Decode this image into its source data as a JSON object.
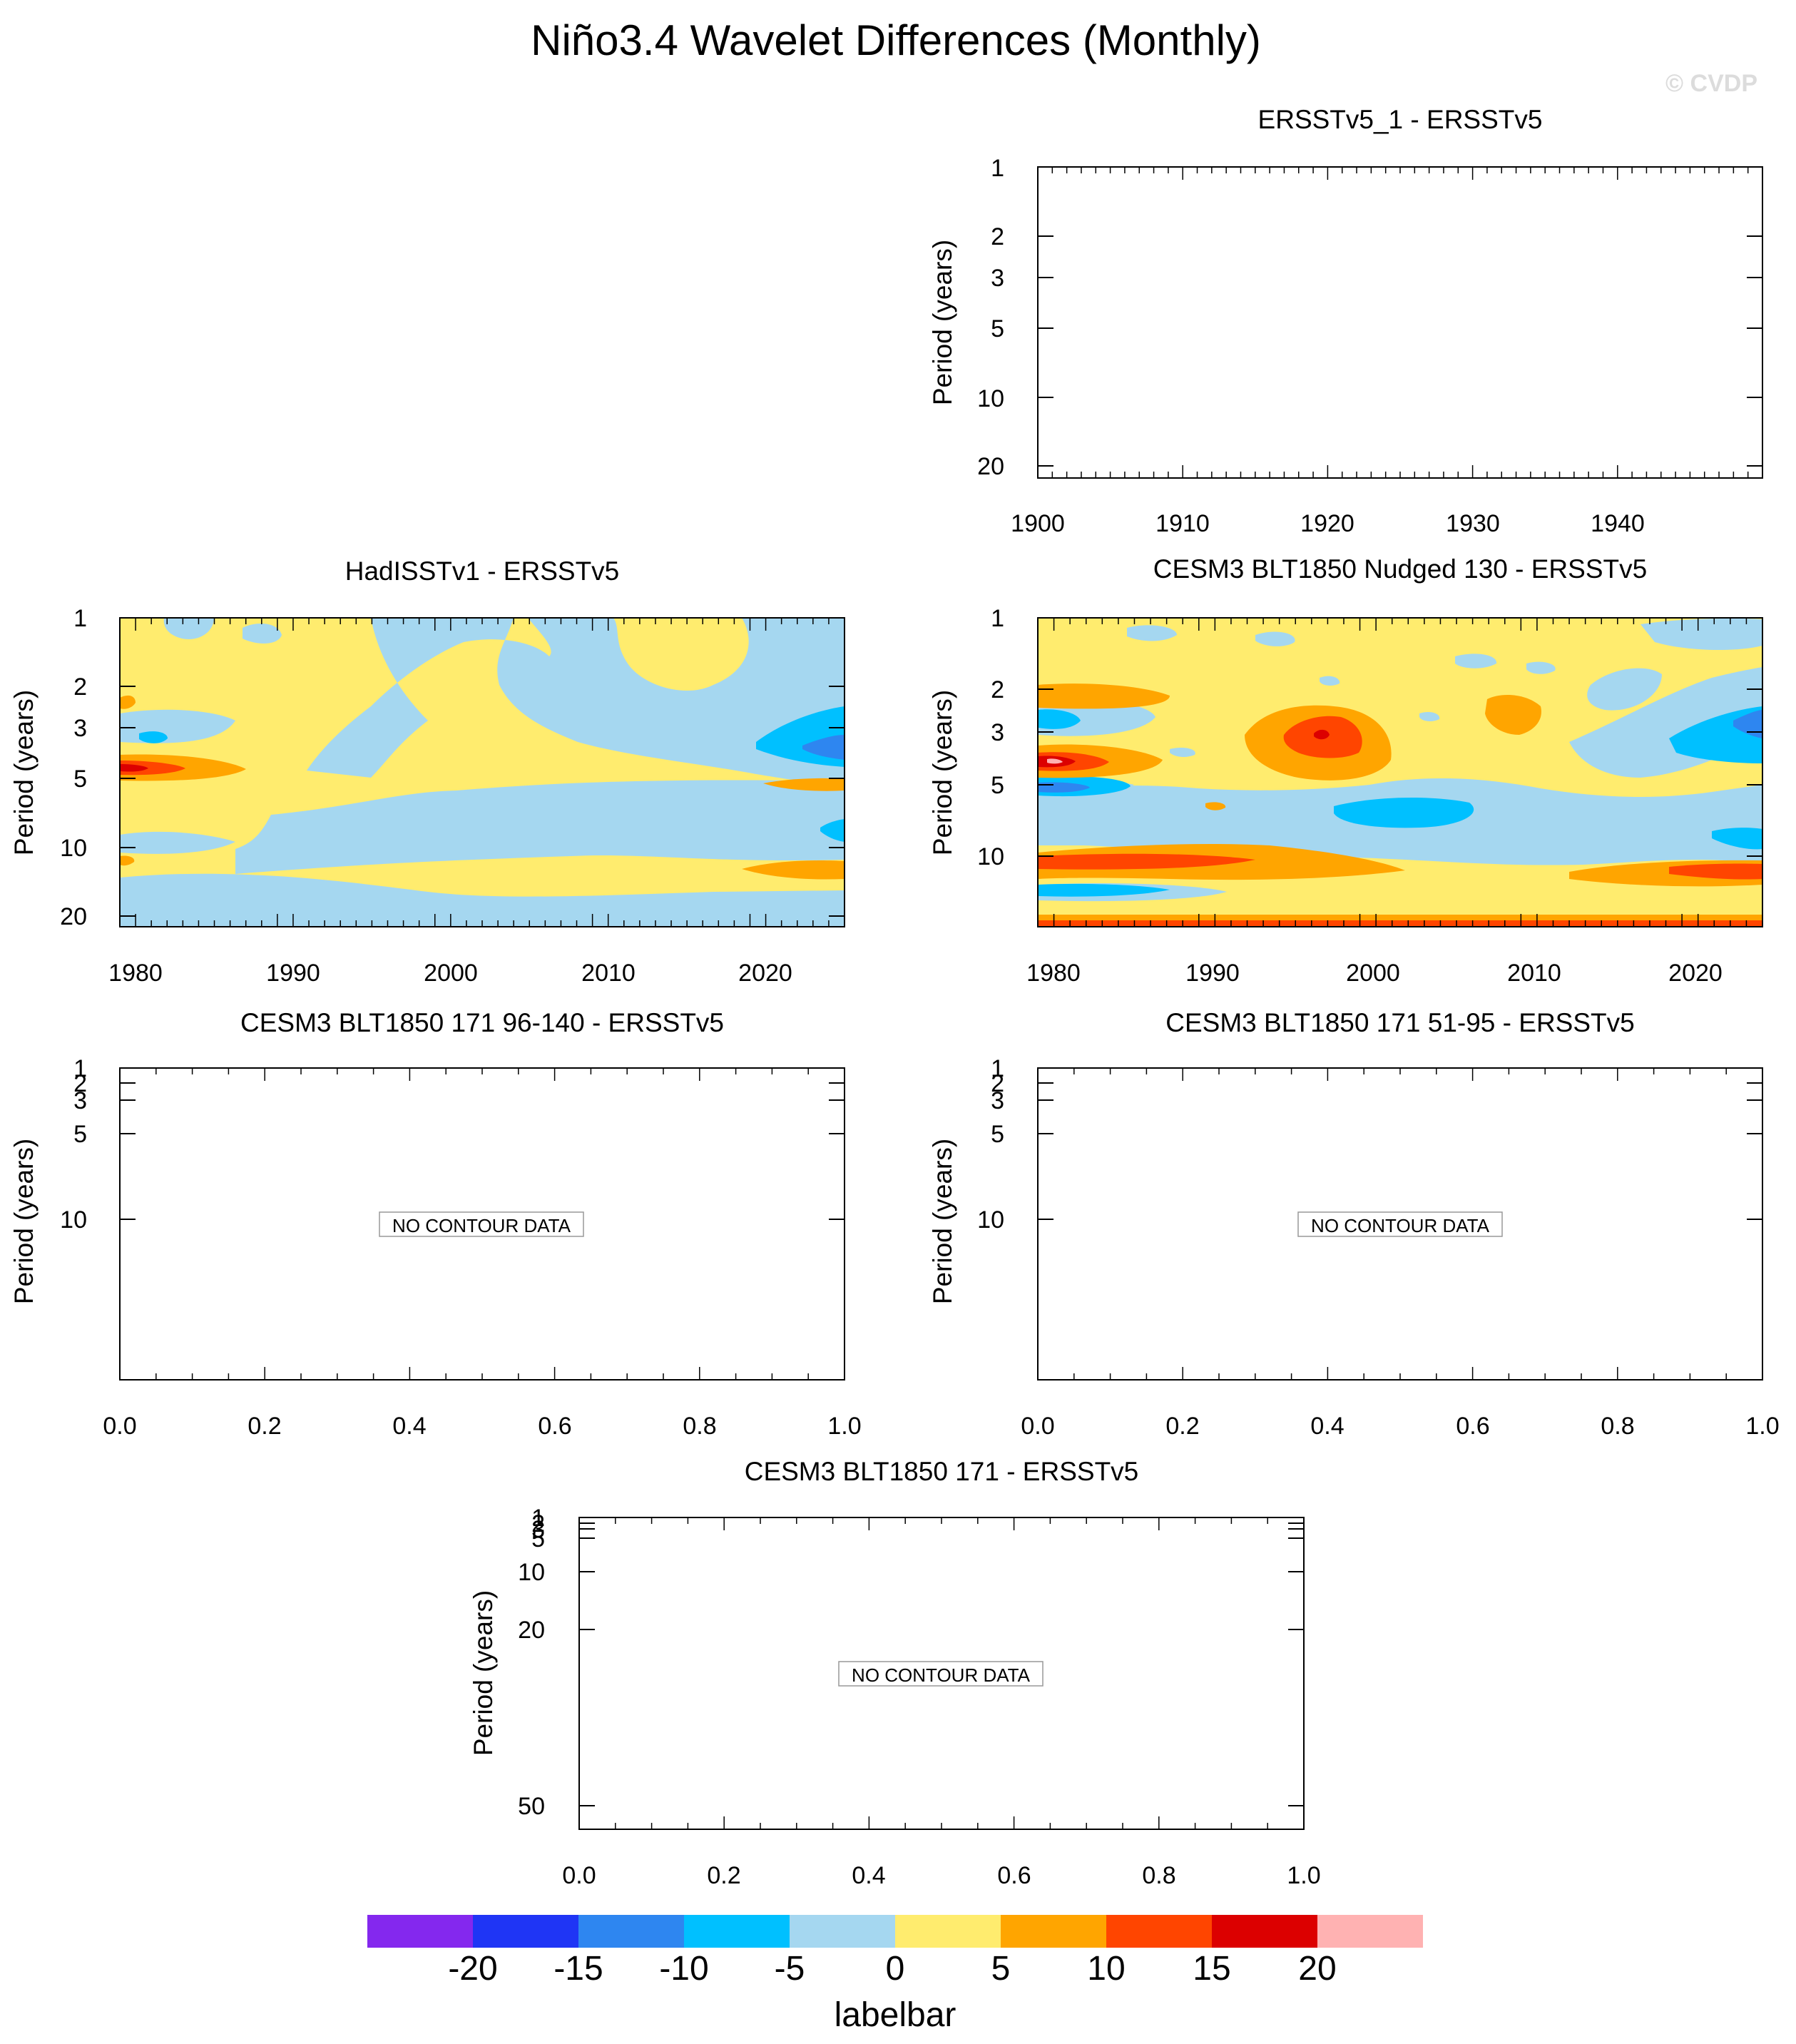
{
  "figure": {
    "title": "Niño3.4 Wavelet Differences (Monthly)",
    "watermark": "© CVDP"
  },
  "chart_data": [
    {
      "id": "p1",
      "type": "heatmap",
      "title": "ERSSTv5_1 - ERSSTv5",
      "ylabel": "Period (years)",
      "xlim": [
        1900,
        1950
      ],
      "xticks": [
        "1900",
        "1910",
        "1920",
        "1930",
        "1940"
      ],
      "yticks": [
        "1",
        "2",
        "3",
        "5",
        "10",
        "20"
      ],
      "no_data_text": "",
      "regions": []
    },
    {
      "id": "p2",
      "type": "heatmap",
      "title": "HadISSTv1 - ERSSTv5",
      "ylabel": "Period (years)",
      "xlim": [
        1979,
        2025
      ],
      "xticks": [
        "1980",
        "1990",
        "2000",
        "2010",
        "2020"
      ],
      "yticks": [
        "1",
        "2",
        "3",
        "5",
        "10",
        "20"
      ],
      "background_level": "0 to 5",
      "regions": [
        {
          "level": "-5 to 0",
          "x": [
            1979,
            2025
          ],
          "period": [
            1.0,
            20.0
          ],
          "note": "broad negative band around 6-20 yr and 1-3 yr at 1990-2015"
        },
        {
          "level": "5 to 10",
          "x": [
            1979,
            1985
          ],
          "period": [
            4.0,
            5.0
          ]
        },
        {
          "level": "10 to 15",
          "x": [
            1979,
            1983
          ],
          "period": [
            4.2,
            4.7
          ]
        },
        {
          "level": "-10 to -5",
          "x": [
            2019,
            2025
          ],
          "period": [
            2.6,
            4.2
          ]
        },
        {
          "level": "-15 to -10",
          "x": [
            2021,
            2025
          ],
          "period": [
            3.2,
            3.9
          ]
        },
        {
          "level": "5 to 10",
          "x": [
            2019,
            2025
          ],
          "period": [
            5.1,
            5.6
          ]
        },
        {
          "level": "5 to 10",
          "x": [
            2018,
            2025
          ],
          "period": [
            11.0,
            13.0
          ]
        },
        {
          "level": "-10 to -5",
          "x": [
            2023,
            2025
          ],
          "period": [
            7.5,
            9.5
          ]
        }
      ]
    },
    {
      "id": "p3",
      "type": "heatmap",
      "title": "CESM3 BLT1850 Nudged 130 - ERSSTv5",
      "ylabel": "Period (years)",
      "xlim": [
        1979,
        2025
      ],
      "xticks": [
        "1980",
        "1990",
        "2000",
        "2010",
        "2020"
      ],
      "yticks": [
        "1",
        "2",
        "3",
        "5",
        "10"
      ],
      "background_level": "0 to 5",
      "regions": [
        {
          "level": "15 to 20",
          "x": [
            1996,
            1998
          ],
          "period": [
            3.1,
            3.5
          ]
        },
        {
          "level": "10 to 15",
          "x": [
            1993,
            2000
          ],
          "period": [
            2.6,
            4.1
          ]
        },
        {
          "level": "5 to 10",
          "x": [
            1991,
            2001
          ],
          "period": [
            2.2,
            4.6
          ]
        },
        {
          "level": "> 20",
          "x": [
            1979,
            1981
          ],
          "period": [
            4.3,
            4.6
          ]
        },
        {
          "level": "15 to 20",
          "x": [
            1979,
            1982
          ],
          "period": [
            4.0,
            4.9
          ]
        },
        {
          "level": "-15 to -10",
          "x": [
            1979,
            1983
          ],
          "period": [
            5.4,
            5.9
          ]
        },
        {
          "level": "10 to 15",
          "x": [
            1979,
            1994
          ],
          "period": [
            10.0,
            11.4
          ]
        },
        {
          "level": "10 to 15",
          "x": [
            2018,
            2025
          ],
          "period": [
            10.3,
            12.0
          ]
        },
        {
          "level": "-10 to -5",
          "x": [
            1998,
            2006
          ],
          "period": [
            6.5,
            8.0
          ]
        },
        {
          "level": "-10 to -5",
          "x": [
            2019,
            2025
          ],
          "period": [
            2.3,
            4.2
          ]
        },
        {
          "level": "-15 to -10",
          "x": [
            2023,
            2025
          ],
          "period": [
            2.5,
            3.0
          ]
        }
      ]
    },
    {
      "id": "p4",
      "type": "heatmap",
      "title": "CESM3 BLT1850 171 96-140 - ERSSTv5",
      "ylabel": "Period (years)",
      "xlim": [
        0.0,
        1.0
      ],
      "xticks": [
        "0.0",
        "0.2",
        "0.4",
        "0.6",
        "0.8",
        "1.0"
      ],
      "yticks": [
        "1",
        "2",
        "3",
        "5",
        "10"
      ],
      "no_data_text": "NO CONTOUR DATA",
      "regions": []
    },
    {
      "id": "p5",
      "type": "heatmap",
      "title": "CESM3 BLT1850 171 51-95 - ERSSTv5",
      "ylabel": "Period (years)",
      "xlim": [
        0.0,
        1.0
      ],
      "xticks": [
        "0.0",
        "0.2",
        "0.4",
        "0.6",
        "0.8",
        "1.0"
      ],
      "yticks": [
        "1",
        "2",
        "3",
        "5",
        "10"
      ],
      "no_data_text": "NO CONTOUR DATA",
      "regions": []
    },
    {
      "id": "p6",
      "type": "heatmap",
      "title": "CESM3 BLT1850 171 - ERSSTv5",
      "ylabel": "Period (years)",
      "xlim": [
        0.0,
        1.0
      ],
      "xticks": [
        "0.0",
        "0.2",
        "0.4",
        "0.6",
        "0.8",
        "1.0"
      ],
      "yticks": [
        "1",
        "2",
        "3",
        "5",
        "10",
        "20",
        "50"
      ],
      "no_data_text": "NO CONTOUR DATA",
      "regions": []
    }
  ],
  "colorbar": {
    "title": "labelbar",
    "labels": [
      "-20",
      "-15",
      "-10",
      "-5",
      "0",
      "5",
      "10",
      "15",
      "20"
    ],
    "colors": [
      "#8428ee",
      "#1f35f5",
      "#2e86f0",
      "#00c0ff",
      "#a5d7f0",
      "#ffec6e",
      "#ffa500",
      "#ff4500",
      "#dc0000",
      "#ffb2b2"
    ]
  }
}
